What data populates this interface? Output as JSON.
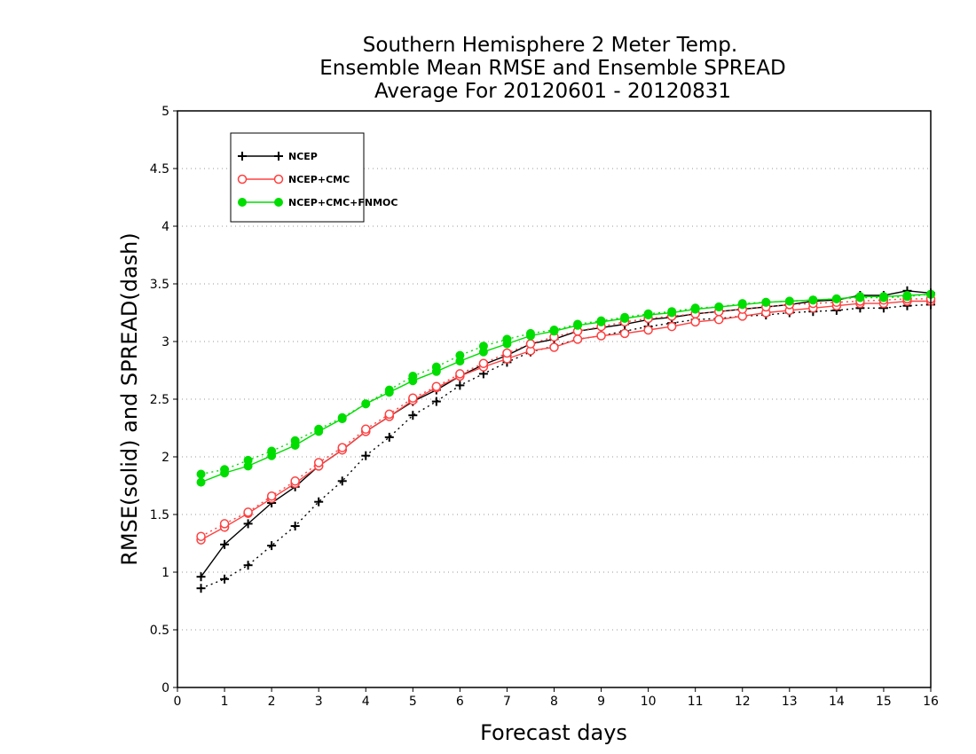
{
  "chart_data": {
    "type": "line",
    "title": [
      "Southern Hemisphere 2 Meter Temp.",
      "Ensemble Mean RMSE and Ensemble SPREAD",
      "Average For 20120601 - 20120831"
    ],
    "xlabel": "Forecast days",
    "ylabel": "RMSE(solid) and SPREAD(dash)",
    "xlim": [
      0,
      16
    ],
    "ylim": [
      0,
      5
    ],
    "xticks": [
      "0",
      "1",
      "2",
      "3",
      "4",
      "5",
      "6",
      "7",
      "8",
      "9",
      "10",
      "11",
      "12",
      "13",
      "14",
      "15",
      "16"
    ],
    "yticks": [
      "0",
      "0.5",
      "1",
      "1.5",
      "2",
      "2.5",
      "3",
      "3.5",
      "4",
      "4.5",
      "5"
    ],
    "grid": "horizontal dotted",
    "legend_position": "top-left",
    "x": [
      0.5,
      1,
      1.5,
      2,
      2.5,
      3,
      3.5,
      4,
      4.5,
      5,
      5.5,
      6,
      6.5,
      7,
      7.5,
      8,
      8.5,
      9,
      9.5,
      10,
      10.5,
      11,
      11.5,
      12,
      12.5,
      13,
      13.5,
      14,
      14.5,
      15,
      15.5,
      16
    ],
    "series": [
      {
        "name": "NCEP",
        "style": "solid",
        "marker": "plus",
        "color": "#000000",
        "values": [
          0.96,
          1.24,
          1.42,
          1.6,
          1.74,
          1.92,
          2.06,
          2.22,
          2.35,
          2.48,
          2.58,
          2.7,
          2.8,
          2.88,
          2.98,
          3.02,
          3.09,
          3.12,
          3.15,
          3.19,
          3.21,
          3.24,
          3.26,
          3.28,
          3.3,
          3.32,
          3.35,
          3.36,
          3.4,
          3.4,
          3.44,
          3.42
        ]
      },
      {
        "name": "NCEP",
        "style": "dash",
        "marker": "plus",
        "color": "#000000",
        "values": [
          0.86,
          0.94,
          1.06,
          1.23,
          1.4,
          1.61,
          1.79,
          2.01,
          2.17,
          2.36,
          2.48,
          2.62,
          2.72,
          2.82,
          2.91,
          2.96,
          3.02,
          3.05,
          3.09,
          3.13,
          3.16,
          3.19,
          3.2,
          3.22,
          3.23,
          3.25,
          3.26,
          3.27,
          3.29,
          3.29,
          3.31,
          3.32
        ]
      },
      {
        "name": "NCEP+CMC",
        "style": "solid",
        "marker": "open-circle",
        "color": "#ff4040",
        "values": [
          1.28,
          1.39,
          1.51,
          1.64,
          1.77,
          1.92,
          2.06,
          2.22,
          2.35,
          2.49,
          2.6,
          2.7,
          2.78,
          2.85,
          2.92,
          2.95,
          3.02,
          3.05,
          3.07,
          3.1,
          3.13,
          3.17,
          3.19,
          3.22,
          3.25,
          3.27,
          3.29,
          3.31,
          3.33,
          3.33,
          3.35,
          3.35
        ]
      },
      {
        "name": "NCEP+CMC",
        "style": "dash",
        "marker": "open-circle",
        "color": "#ff4040",
        "values": [
          1.31,
          1.42,
          1.52,
          1.66,
          1.79,
          1.95,
          2.08,
          2.24,
          2.37,
          2.51,
          2.61,
          2.72,
          2.81,
          2.9,
          2.98,
          3.04,
          3.09,
          3.13,
          3.17,
          3.2,
          3.22,
          3.24,
          3.26,
          3.28,
          3.3,
          3.32,
          3.33,
          3.34,
          3.35,
          3.36,
          3.37,
          3.37
        ]
      },
      {
        "name": "NCEP+CMC+FNMOC",
        "style": "solid",
        "marker": "filled-circle",
        "color": "#00dd00",
        "values": [
          1.78,
          1.86,
          1.92,
          2.01,
          2.1,
          2.22,
          2.33,
          2.46,
          2.56,
          2.66,
          2.74,
          2.83,
          2.91,
          2.98,
          3.05,
          3.09,
          3.14,
          3.17,
          3.2,
          3.23,
          3.25,
          3.28,
          3.3,
          3.32,
          3.34,
          3.35,
          3.36,
          3.37,
          3.39,
          3.39,
          3.4,
          3.41
        ]
      },
      {
        "name": "NCEP+CMC+FNMOC",
        "style": "dash",
        "marker": "filled-circle",
        "color": "#00dd00",
        "values": [
          1.85,
          1.89,
          1.97,
          2.05,
          2.14,
          2.24,
          2.34,
          2.46,
          2.58,
          2.7,
          2.78,
          2.88,
          2.96,
          3.02,
          3.07,
          3.1,
          3.15,
          3.18,
          3.21,
          3.24,
          3.26,
          3.29,
          3.3,
          3.33,
          3.34,
          3.35,
          3.36,
          3.37,
          3.38,
          3.38,
          3.39,
          3.41
        ]
      }
    ],
    "legend": [
      {
        "label": "NCEP",
        "marker": "plus",
        "color": "#000000"
      },
      {
        "label": "NCEP+CMC",
        "marker": "open-circle",
        "color": "#ff4040"
      },
      {
        "label": "NCEP+CMC+FNMOC",
        "marker": "filled-circle",
        "color": "#00dd00"
      }
    ]
  }
}
